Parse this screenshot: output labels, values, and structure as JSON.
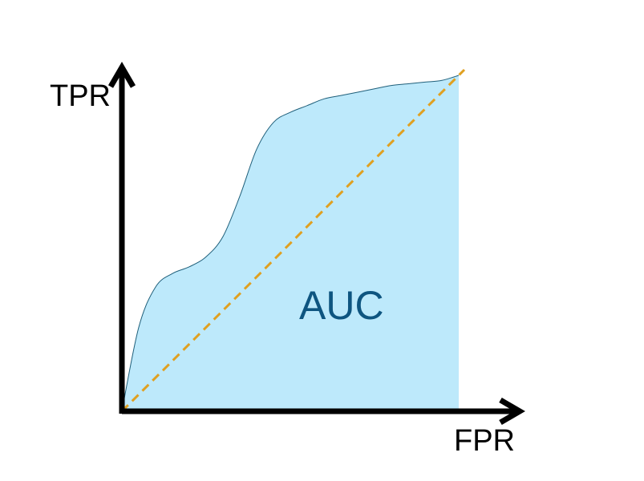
{
  "chart_data": {
    "type": "area",
    "title": "",
    "xlabel": "FPR",
    "ylabel": "TPR",
    "annotation": "AUC",
    "xlim": [
      0,
      1
    ],
    "ylim": [
      0,
      1
    ],
    "grid": false,
    "legend": "none",
    "series": [
      {
        "kind": "roc-curve",
        "x": [
          0,
          0.05,
          0.1,
          0.15,
          0.2,
          0.25,
          0.3,
          0.35,
          0.4,
          0.45,
          0.5,
          0.55,
          0.6,
          0.65,
          0.7,
          0.75,
          0.8,
          0.85,
          0.9,
          0.95,
          1
        ],
        "y": [
          0,
          0.25,
          0.37,
          0.41,
          0.43,
          0.46,
          0.52,
          0.64,
          0.78,
          0.86,
          0.89,
          0.91,
          0.93,
          0.94,
          0.95,
          0.96,
          0.97,
          0.975,
          0.98,
          0.985,
          1
        ]
      },
      {
        "kind": "random-baseline",
        "x": [
          0,
          1
        ],
        "y": [
          0,
          1
        ]
      }
    ],
    "colors": {
      "area_fill": "#bde9fb",
      "curve_stroke": "#1f5f7a",
      "diagonal": "#e0a020",
      "axes": "#000000",
      "annotation": "#0e5580"
    }
  }
}
